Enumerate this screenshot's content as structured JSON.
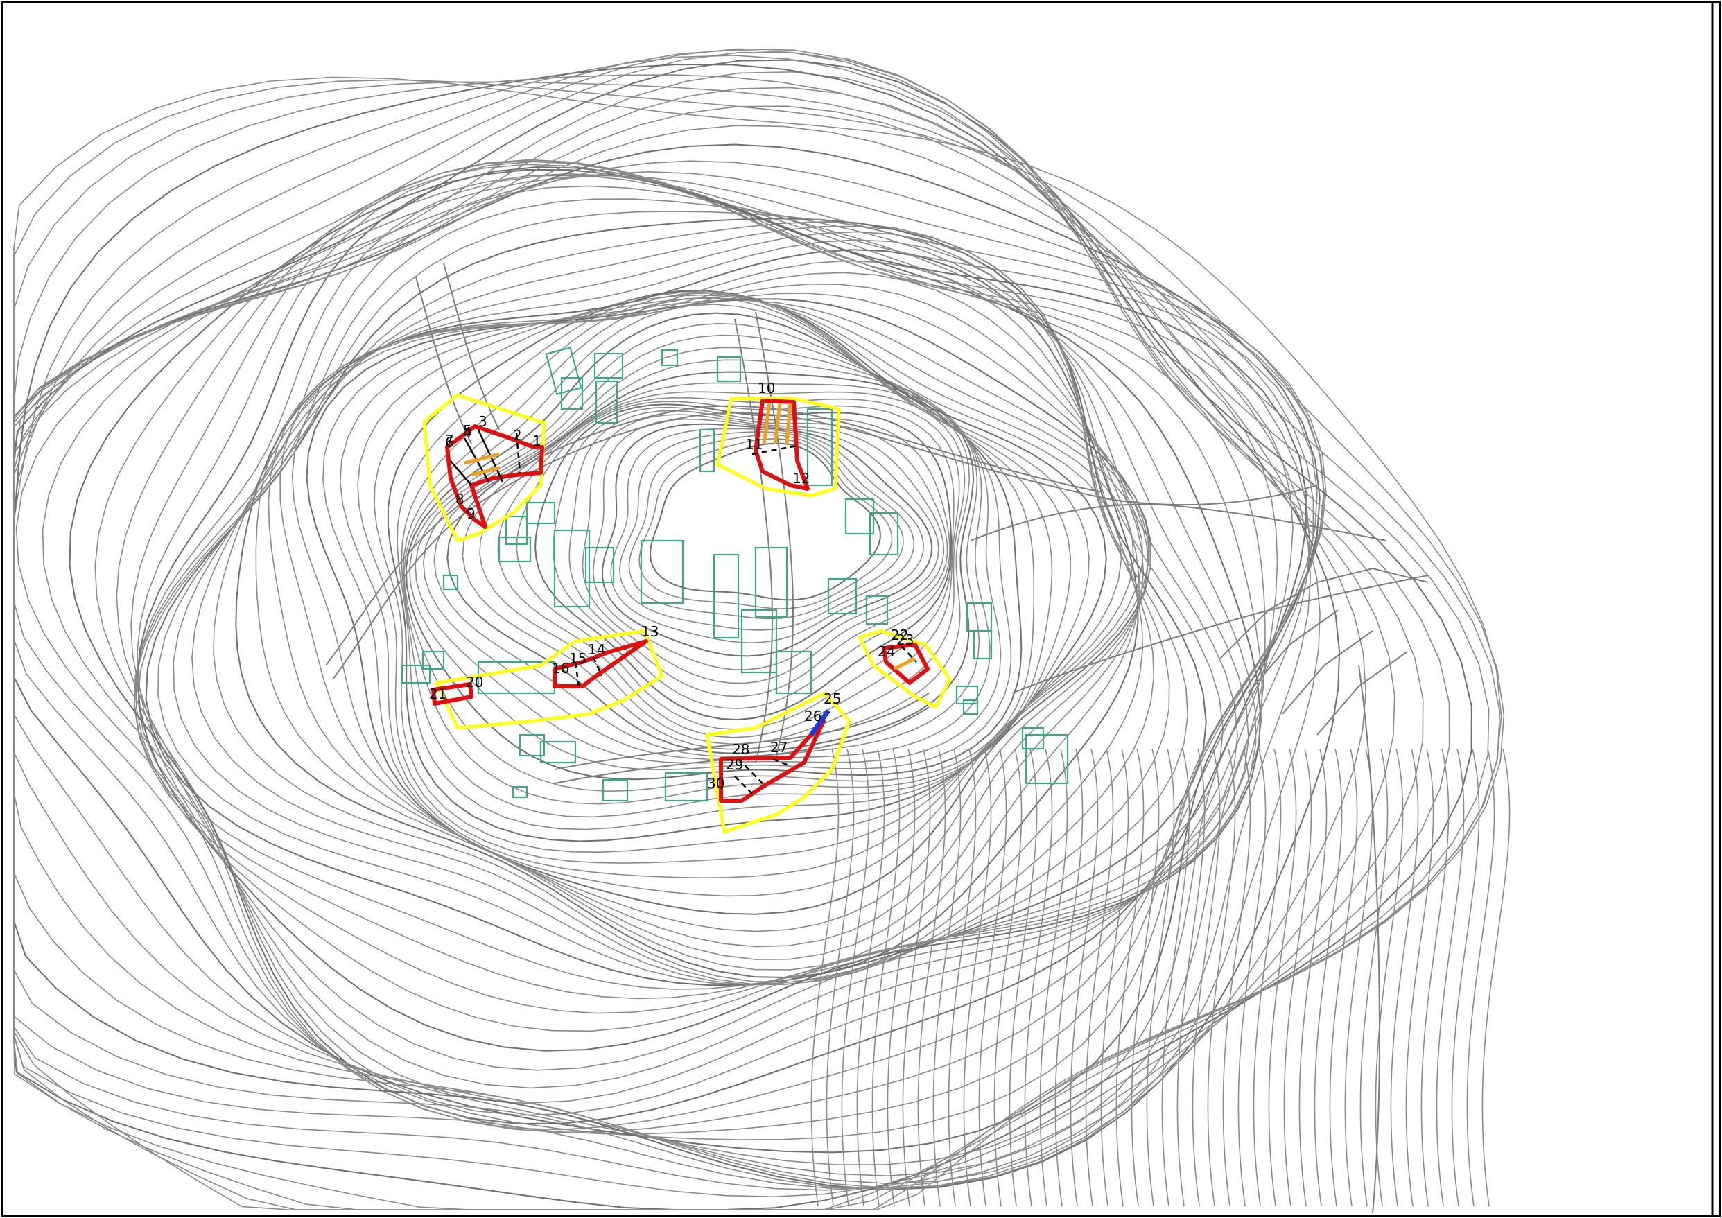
{
  "map": {
    "legend": {
      "colors": {
        "zone_outline": "#ffff1a",
        "slope_area": "#e01010",
        "building": "#3aa88a",
        "contour": "#8a8a8a",
        "hatch": "#f0a020",
        "marker_blue": "#1a3bd6"
      }
    },
    "labels": [
      "1",
      "2",
      "3",
      "4",
      "5",
      "6",
      "7",
      "8",
      "9",
      "10",
      "11",
      "12",
      "13",
      "14",
      "15",
      "16",
      "20",
      "21",
      "22",
      "23",
      "24",
      "25",
      "26",
      "27",
      "28",
      "29",
      "30"
    ]
  }
}
